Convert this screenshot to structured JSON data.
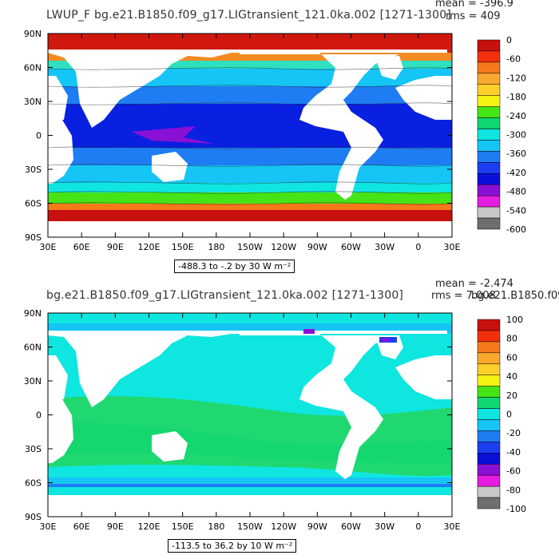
{
  "panels": [
    {
      "title": "LWUP_F bg.e21.B1850.f09_g17.LIGtransient_121.0ka.002 [1271-1300]",
      "mean_label": "mean = -396.9",
      "rms_label": "rms = 409",
      "range_label": "-488.3 to -.2 by 30  W m⁻²",
      "colorbar_labels": [
        "0",
        "-60",
        "-120",
        "-180",
        "-240",
        "-300",
        "-360",
        "-420",
        "-480",
        "-540",
        "-600"
      ],
      "colorbar_colors": [
        "#c8100e",
        "#f2300c",
        "#f57a1a",
        "#f9a830",
        "#fcd02a",
        "#f6f214",
        "#46e316",
        "#0fd770",
        "#0fe6e0",
        "#15c5f5",
        "#1e7df2",
        "#1c3df0",
        "#0a10d8",
        "#8b10d6",
        "#e61ce0",
        "#c8c8c8",
        "#6e6e6e"
      ]
    },
    {
      "title": "bg.e21.B1850.f09_g17.LIGtransient_121.0ka.002 [1271-1300]",
      "mean_label": "mean = -2.474",
      "rms_label": "rms = 7.008",
      "overlap_label": "bg.e21.B1850.f09",
      "range_label": "-113.5 to 36.2 by 10  W m⁻²",
      "colorbar_labels": [
        "100",
        "80",
        "60",
        "40",
        "20",
        "0",
        "-20",
        "-40",
        "-60",
        "-80",
        "-100"
      ],
      "colorbar_colors": [
        "#c8100e",
        "#f2300c",
        "#f57a1a",
        "#f9a830",
        "#fcd02a",
        "#f6f214",
        "#46e316",
        "#0fd770",
        "#0fe6e0",
        "#15c5f5",
        "#1e7df2",
        "#1c3df0",
        "#0a10d8",
        "#8b10d6",
        "#e61ce0",
        "#c8c8c8",
        "#6e6e6e"
      ]
    }
  ],
  "axes": {
    "lat_labels": [
      "90N",
      "60N",
      "30N",
      "0",
      "30S",
      "60S",
      "90S"
    ],
    "lon_labels": [
      "30E",
      "60E",
      "90E",
      "120E",
      "150E",
      "180",
      "150W",
      "120W",
      "90W",
      "60W",
      "30W",
      "0",
      "30E"
    ]
  }
}
